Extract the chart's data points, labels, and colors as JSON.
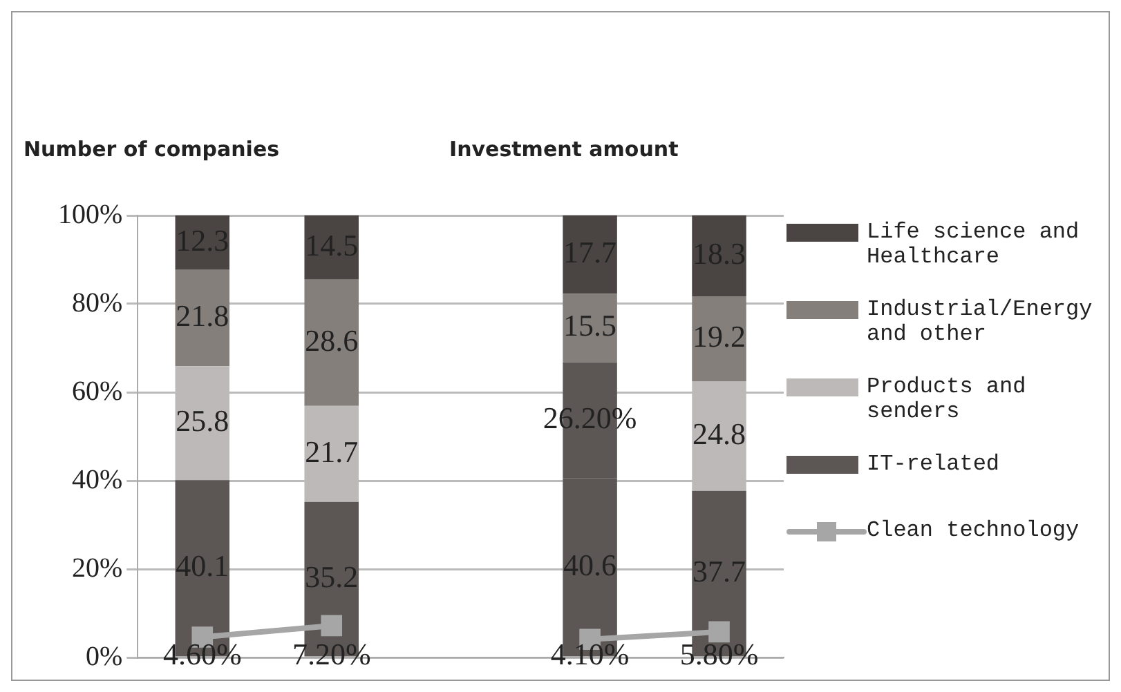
{
  "chart_data": {
    "type": "bar",
    "stacked": true,
    "categories": [
      null,
      null,
      null,
      null,
      null
    ],
    "annotations": [
      "Number of companies",
      "Investment amount"
    ],
    "series": [
      {
        "name": "IT-related",
        "color": "#5c5755",
        "values": [
          40.1,
          35.2,
          null,
          40.6,
          37.7
        ],
        "value_labels": [
          "40.1",
          "35.2",
          null,
          "40.6",
          "37.7"
        ]
      },
      {
        "name": "Products and senders",
        "color": "#bdb9b8",
        "colors": [
          "#bdb9b8",
          "#bdb9b8",
          "#bdb9b8",
          "#5c5755",
          "#bdb9b8"
        ],
        "values": [
          25.8,
          21.7,
          null,
          26.2,
          24.8
        ],
        "value_labels": [
          "25.8",
          "21.7",
          null,
          "26.20%",
          "24.8"
        ]
      },
      {
        "name": "Industrial/Energy and other",
        "color": "#857f7c",
        "values": [
          21.8,
          28.6,
          null,
          15.5,
          19.2
        ],
        "value_labels": [
          "21.8",
          "28.6",
          null,
          "15.5",
          "19.2"
        ]
      },
      {
        "name": "Life science and Healthcare",
        "color": "#4a4542",
        "values": [
          12.3,
          14.5,
          null,
          17.7,
          18.3
        ],
        "value_labels": [
          "12.3",
          "14.5",
          null,
          "17.7",
          "18.3"
        ]
      },
      {
        "name": "Clean technology",
        "type": "line",
        "color": "#a6a6a6",
        "marker": "square",
        "values": [
          4.6,
          7.2,
          null,
          4.1,
          5.8
        ],
        "value_labels": [
          "4.60%",
          "7.20%",
          null,
          "4.10%",
          "5.80%"
        ]
      }
    ],
    "ylim": [
      0,
      100
    ],
    "yticks": [
      {
        "value": 0,
        "label": "0%"
      },
      {
        "value": 20,
        "label": "20%"
      },
      {
        "value": 40,
        "label": "40%"
      },
      {
        "value": 60,
        "label": "60%"
      },
      {
        "value": 80,
        "label": "80%"
      },
      {
        "value": 100,
        "label": "100%"
      }
    ],
    "grid": "y",
    "legend": "right"
  }
}
